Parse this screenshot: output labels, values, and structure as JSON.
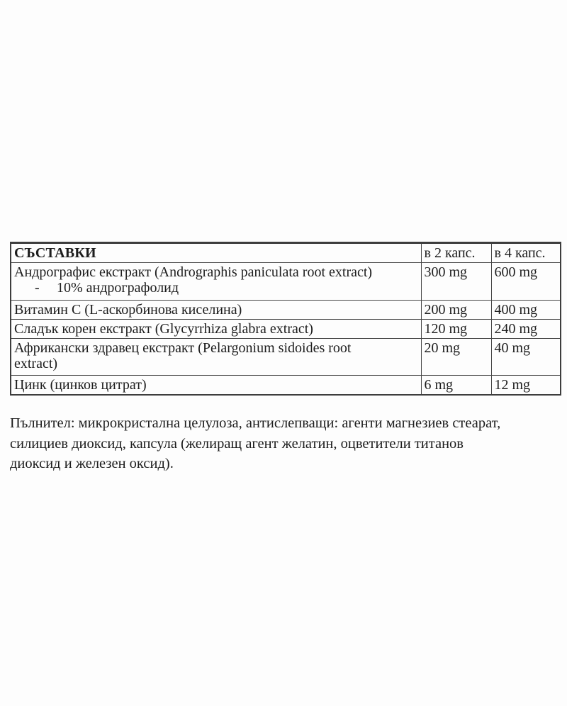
{
  "table": {
    "header": {
      "ingredients": "СЪСТАВКИ",
      "per_2_caps": "в 2 капс.",
      "per_4_caps": "в 4 капс."
    },
    "rows": [
      {
        "name": "Андрографис екстракт (Andrographis paniculata root extract)",
        "sub_marker": "-",
        "sub": "10% андрографолид",
        "per2": "300 mg",
        "per4": "600 mg"
      },
      {
        "name": "Витамин С (L-аскорбинова киселина)",
        "per2": "200 mg",
        "per4": "400 mg"
      },
      {
        "name": "Сладък корен екстракт (Glycyrrhiza glabra extract)",
        "per2": "120 mg",
        "per4": "240 mg"
      },
      {
        "name_line1": "Африкански здравец екстракт (Pelargonium sidoides root",
        "name_line2": "extract)",
        "per2": "20 mg",
        "per4": "40 mg"
      },
      {
        "name": "Цинк (цинков цитрат)",
        "per2": "6 mg",
        "per4": "12 mg"
      }
    ]
  },
  "note": {
    "lines": [
      "Пълнител: микрокристална целулоза, антислепващи: агенти магнезиев стеарат,",
      "силициев диоксид, капсула (желиращ агент желатин, оцветители титанов",
      "диоксид и железен оксид)."
    ]
  }
}
